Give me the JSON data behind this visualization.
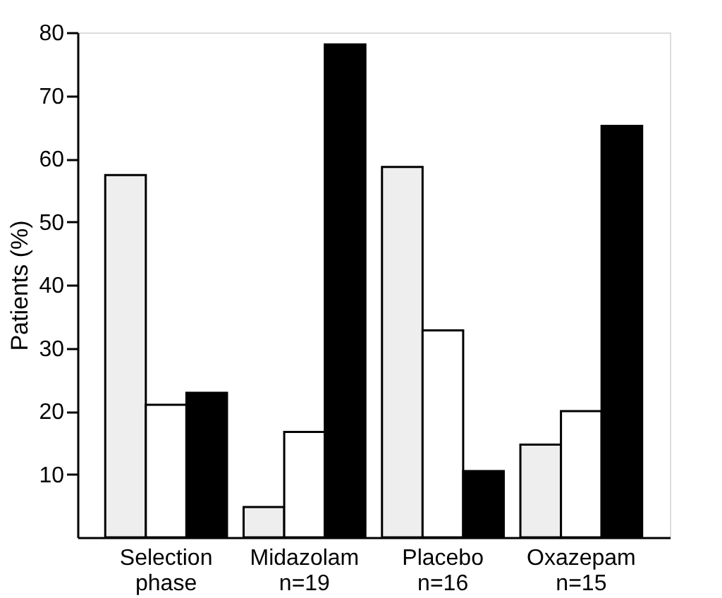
{
  "chart_data": {
    "type": "bar",
    "ylabel": "Patients (%)",
    "categories": [
      "Selection\nphase",
      "Midazolam\nn=19",
      "Placebo\nn=16",
      "Oxazepam\nn=15"
    ],
    "series": [
      {
        "color": "#eeeeee",
        "values": [
          57.4,
          4.8,
          58.7,
          14.7
        ]
      },
      {
        "color": "#ffffff",
        "values": [
          21.0,
          16.7,
          32.8,
          20.0
        ]
      },
      {
        "color": "#000000",
        "values": [
          22.9,
          78.1,
          10.5,
          65.2
        ]
      }
    ],
    "ylim": [
      0,
      80
    ],
    "yticks": [
      10,
      20,
      30,
      40,
      50,
      60,
      70,
      80
    ],
    "grid": false,
    "legend": false
  }
}
